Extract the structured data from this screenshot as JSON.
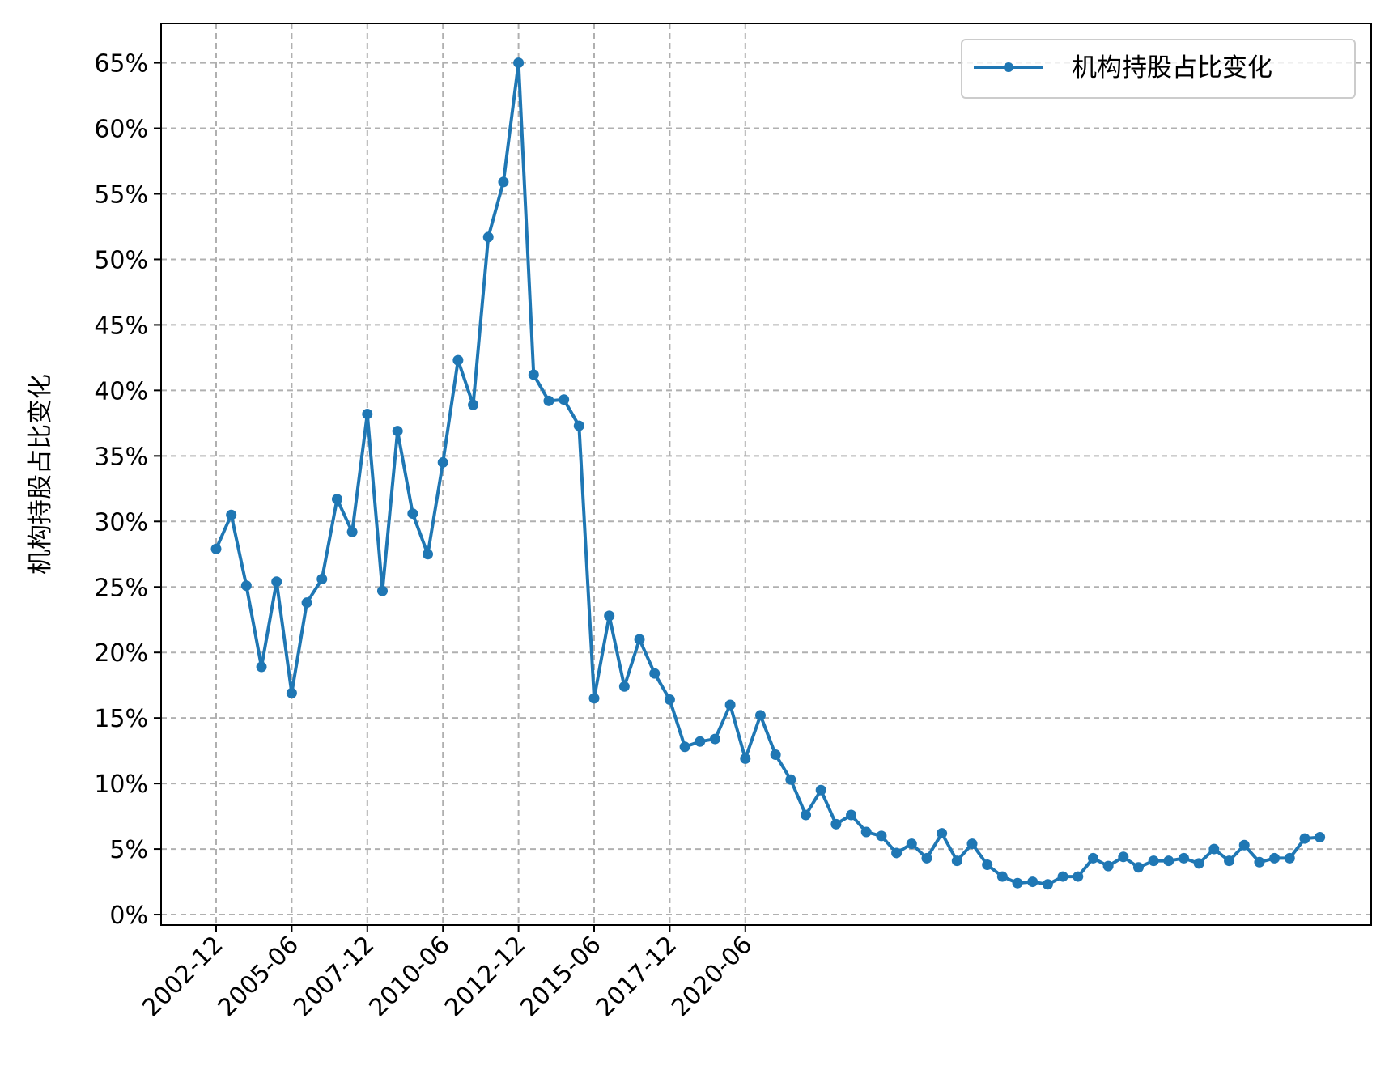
{
  "chart_data": {
    "type": "line",
    "title": "",
    "xlabel": "",
    "ylabel": "机构持股占比变化",
    "y_format": "percent",
    "ylim": [
      -0.008,
      0.68
    ],
    "yticks": [
      0,
      0.05,
      0.1,
      0.15,
      0.2,
      0.25,
      0.3,
      0.35,
      0.4,
      0.45,
      0.5,
      0.55,
      0.6,
      0.65
    ],
    "ytick_labels": [
      "0%",
      "5%",
      "10%",
      "15%",
      "20%",
      "25%",
      "30%",
      "35%",
      "40%",
      "45%",
      "50%",
      "55%",
      "60%",
      "65%"
    ],
    "xticks": [
      "2002-12",
      "2005-06",
      "2007-12",
      "2010-06",
      "2012-12",
      "2015-06",
      "2017-12",
      "2020-06"
    ],
    "grid": true,
    "legend_position": "top-right",
    "x": [
      "2002-12",
      "2003-06",
      "2003-12",
      "2004-06",
      "2004-12",
      "2005-06",
      "2005-12",
      "2006-06",
      "2006-12",
      "2007-06",
      "2007-12",
      "2008-06",
      "2008-12",
      "2009-06",
      "2009-12",
      "2010-06",
      "2010-12",
      "2011-06",
      "2011-12",
      "2012-06",
      "2012-12",
      "2013-06",
      "2013-12",
      "2014-06",
      "2014-12",
      "2015-06",
      "2015-12",
      "2016-06",
      "2016-12",
      "2017-06",
      "2017-12",
      "2018-06",
      "2018-12",
      "2019-06",
      "2019-12",
      "2020-06",
      "2020-12",
      "2021-06",
      "2021-12",
      "2022-06",
      "2022-12",
      "2023-06",
      "2023-12",
      "2024-06",
      "2024-12",
      "2025-06",
      "2025-12",
      "2026-06",
      "2026-12",
      "2027-06",
      "2027-12",
      "2028-06",
      "2028-12",
      "2029-06",
      "2029-12",
      "2030-06",
      "2030-12",
      "2031-06",
      "2031-12",
      "2032-06",
      "2032-12",
      "2033-06",
      "2033-12",
      "2034-06",
      "2034-12",
      "2035-06",
      "2035-12",
      "2036-06",
      "2036-12",
      "2037-06",
      "2037-12",
      "2038-06",
      "2038-12",
      "2039-06"
    ],
    "series": [
      {
        "name": "机构持股占比变化",
        "color": "#1f77b4",
        "marker": "circle",
        "values": [
          0.279,
          0.305,
          0.251,
          0.189,
          0.254,
          0.169,
          0.238,
          0.256,
          0.317,
          0.292,
          0.382,
          0.247,
          0.369,
          0.306,
          0.275,
          0.345,
          0.423,
          0.389,
          0.517,
          0.559,
          0.65,
          0.412,
          0.392,
          0.393,
          0.373,
          0.165,
          0.228,
          0.174,
          0.21,
          0.184,
          0.164,
          0.128,
          0.132,
          0.134,
          0.16,
          0.119,
          0.152,
          0.122,
          0.103,
          0.076,
          0.095,
          0.069,
          0.076,
          0.063,
          0.06,
          0.047,
          0.054,
          0.043,
          0.062,
          0.041,
          0.054,
          0.038,
          0.029,
          0.024,
          0.025,
          0.023,
          0.029,
          0.029,
          0.043,
          0.037,
          0.044,
          0.036,
          0.041,
          0.041,
          0.043,
          0.039,
          0.05,
          0.041,
          0.053,
          0.04,
          0.043,
          0.043,
          0.058,
          0.059
        ]
      }
    ]
  }
}
